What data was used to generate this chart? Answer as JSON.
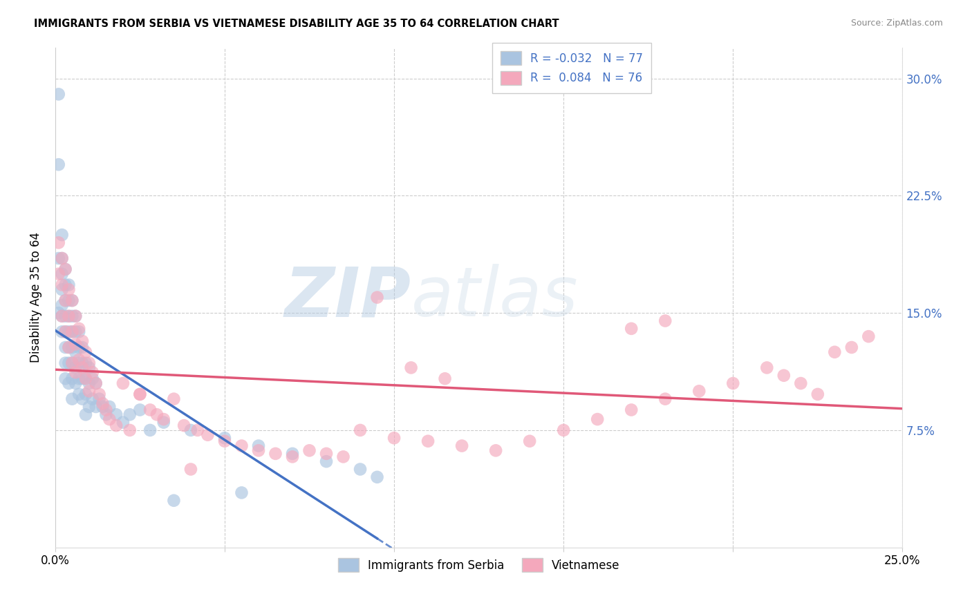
{
  "title": "IMMIGRANTS FROM SERBIA VS VIETNAMESE DISABILITY AGE 35 TO 64 CORRELATION CHART",
  "source": "Source: ZipAtlas.com",
  "ylabel_label": "Disability Age 35 to 64",
  "xlim": [
    0.0,
    0.25
  ],
  "ylim": [
    0.0,
    0.32
  ],
  "ytick_vals": [
    0.075,
    0.15,
    0.225,
    0.3
  ],
  "xtick_vals": [
    0.0,
    0.05,
    0.1,
    0.15,
    0.2,
    0.25
  ],
  "serbia_color": "#aac4e0",
  "vietnamese_color": "#f4a8bc",
  "serbia_line_color": "#4472c4",
  "vietnamese_line_color": "#e05878",
  "serbia_R": -0.032,
  "serbian_N": 77,
  "vietnamese_R": 0.084,
  "vietnamese_N": 76,
  "watermark_zip": "ZIP",
  "watermark_atlas": "atlas",
  "serbia_scatter_x": [
    0.001,
    0.001,
    0.001,
    0.001,
    0.002,
    0.002,
    0.002,
    0.002,
    0.002,
    0.002,
    0.002,
    0.003,
    0.003,
    0.003,
    0.003,
    0.003,
    0.003,
    0.003,
    0.003,
    0.004,
    0.004,
    0.004,
    0.004,
    0.004,
    0.004,
    0.004,
    0.005,
    0.005,
    0.005,
    0.005,
    0.005,
    0.005,
    0.005,
    0.006,
    0.006,
    0.006,
    0.006,
    0.006,
    0.007,
    0.007,
    0.007,
    0.007,
    0.007,
    0.008,
    0.008,
    0.008,
    0.008,
    0.009,
    0.009,
    0.009,
    0.009,
    0.01,
    0.01,
    0.01,
    0.011,
    0.011,
    0.012,
    0.012,
    0.013,
    0.014,
    0.015,
    0.016,
    0.018,
    0.02,
    0.022,
    0.025,
    0.028,
    0.032,
    0.04,
    0.05,
    0.06,
    0.07,
    0.08,
    0.09,
    0.095,
    0.055,
    0.035
  ],
  "serbia_scatter_y": [
    0.29,
    0.245,
    0.185,
    0.15,
    0.2,
    0.185,
    0.175,
    0.165,
    0.155,
    0.148,
    0.138,
    0.178,
    0.168,
    0.158,
    0.148,
    0.138,
    0.128,
    0.118,
    0.108,
    0.168,
    0.158,
    0.148,
    0.138,
    0.128,
    0.118,
    0.105,
    0.158,
    0.148,
    0.138,
    0.128,
    0.118,
    0.108,
    0.095,
    0.148,
    0.138,
    0.125,
    0.115,
    0.105,
    0.138,
    0.128,
    0.118,
    0.108,
    0.098,
    0.128,
    0.118,
    0.108,
    0.095,
    0.118,
    0.108,
    0.098,
    0.085,
    0.115,
    0.105,
    0.09,
    0.108,
    0.095,
    0.105,
    0.09,
    0.095,
    0.09,
    0.085,
    0.09,
    0.085,
    0.08,
    0.085,
    0.088,
    0.075,
    0.08,
    0.075,
    0.07,
    0.065,
    0.06,
    0.055,
    0.05,
    0.045,
    0.035,
    0.03
  ],
  "vietnamese_scatter_x": [
    0.001,
    0.001,
    0.002,
    0.002,
    0.002,
    0.003,
    0.003,
    0.003,
    0.004,
    0.004,
    0.004,
    0.005,
    0.005,
    0.005,
    0.006,
    0.006,
    0.006,
    0.007,
    0.007,
    0.008,
    0.008,
    0.009,
    0.009,
    0.01,
    0.01,
    0.011,
    0.012,
    0.013,
    0.014,
    0.015,
    0.016,
    0.018,
    0.02,
    0.022,
    0.025,
    0.028,
    0.03,
    0.032,
    0.035,
    0.038,
    0.042,
    0.045,
    0.05,
    0.055,
    0.06,
    0.065,
    0.07,
    0.075,
    0.08,
    0.085,
    0.09,
    0.1,
    0.11,
    0.12,
    0.13,
    0.14,
    0.15,
    0.16,
    0.17,
    0.18,
    0.19,
    0.2,
    0.21,
    0.215,
    0.22,
    0.225,
    0.23,
    0.235,
    0.24,
    0.18,
    0.17,
    0.095,
    0.04,
    0.025,
    0.105,
    0.115
  ],
  "vietnamese_scatter_y": [
    0.195,
    0.175,
    0.185,
    0.168,
    0.148,
    0.178,
    0.158,
    0.138,
    0.165,
    0.148,
    0.128,
    0.158,
    0.138,
    0.118,
    0.148,
    0.13,
    0.112,
    0.14,
    0.12,
    0.132,
    0.115,
    0.125,
    0.108,
    0.118,
    0.1,
    0.112,
    0.105,
    0.098,
    0.092,
    0.088,
    0.082,
    0.078,
    0.105,
    0.075,
    0.098,
    0.088,
    0.085,
    0.082,
    0.095,
    0.078,
    0.075,
    0.072,
    0.068,
    0.065,
    0.062,
    0.06,
    0.058,
    0.062,
    0.06,
    0.058,
    0.075,
    0.07,
    0.068,
    0.065,
    0.062,
    0.068,
    0.075,
    0.082,
    0.088,
    0.095,
    0.1,
    0.105,
    0.115,
    0.11,
    0.105,
    0.098,
    0.125,
    0.128,
    0.135,
    0.145,
    0.14,
    0.16,
    0.05,
    0.098,
    0.115,
    0.108
  ]
}
